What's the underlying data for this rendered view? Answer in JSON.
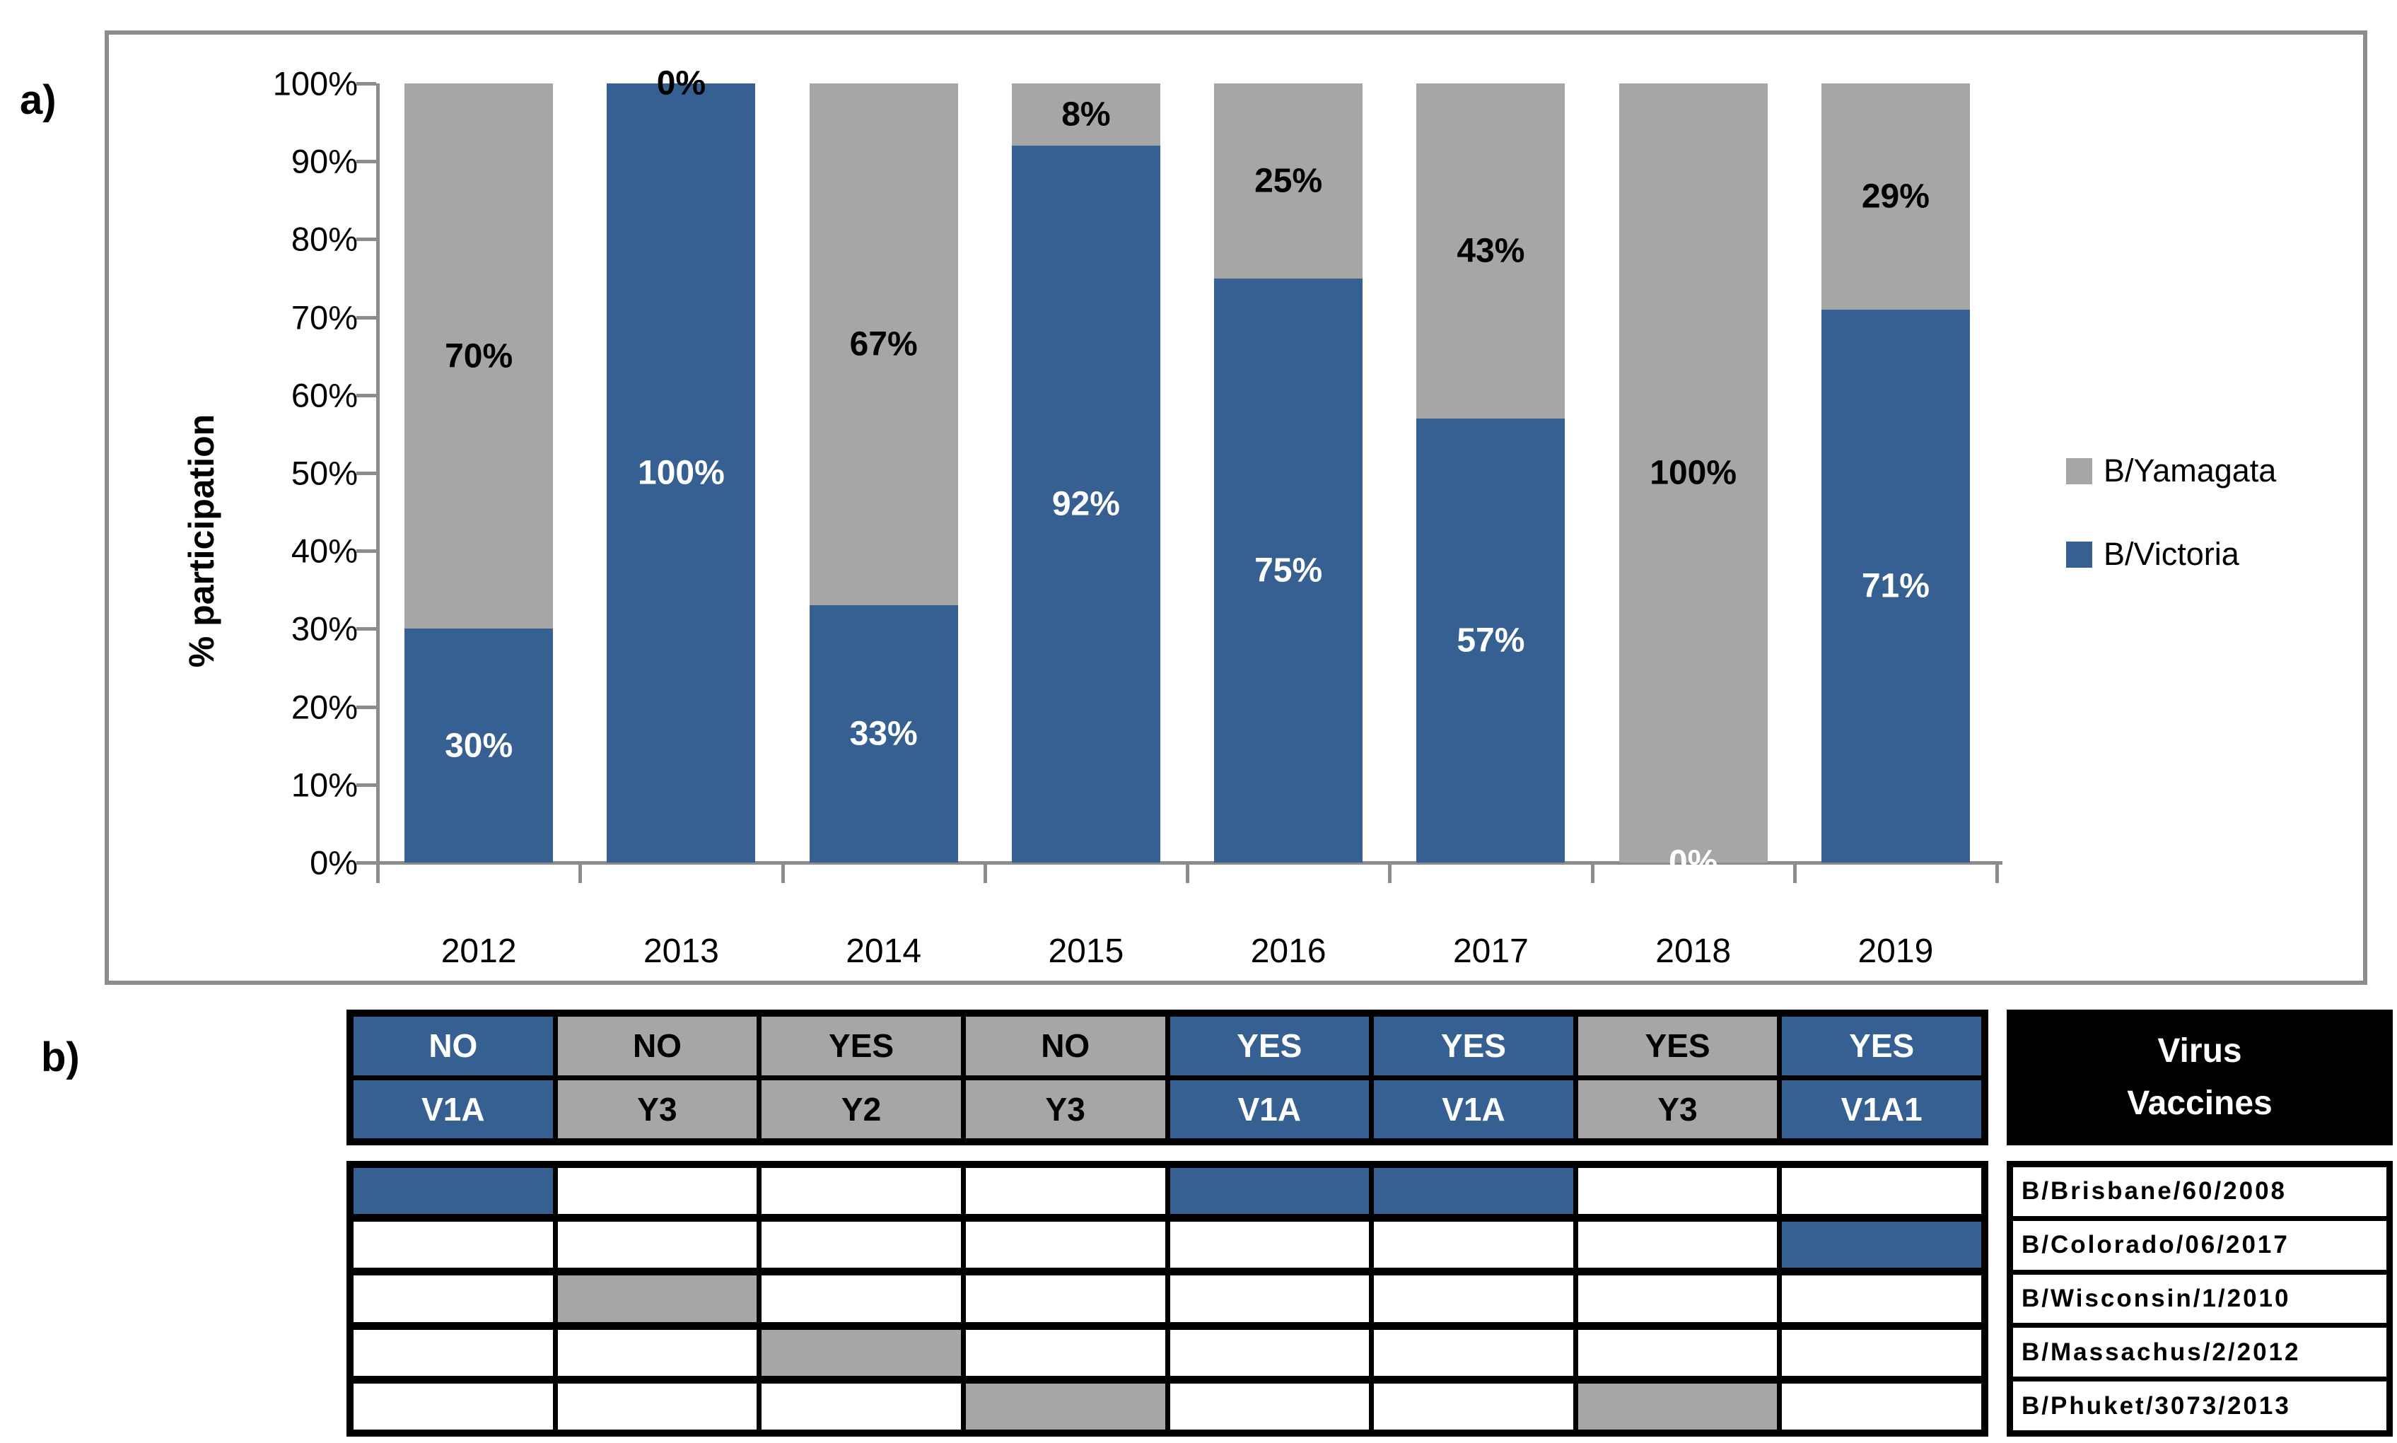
{
  "colors": {
    "victoria": "#366092",
    "yamagata": "#A6A6A6",
    "axis": "#8C8C8C",
    "table_border": "#000000",
    "vaccine_header_bg": "#000000",
    "vaccine_header_text": "#ffffff"
  },
  "panel_a": {
    "label": "a)",
    "y_axis": {
      "title": "% participation",
      "ticks": [
        {
          "label": "0%",
          "value": 0
        },
        {
          "label": "10%",
          "value": 10
        },
        {
          "label": "20%",
          "value": 20
        },
        {
          "label": "30%",
          "value": 30
        },
        {
          "label": "40%",
          "value": 40
        },
        {
          "label": "50%",
          "value": 50
        },
        {
          "label": "60%",
          "value": 60
        },
        {
          "label": "70%",
          "value": 70
        },
        {
          "label": "80%",
          "value": 80
        },
        {
          "label": "90%",
          "value": 90
        },
        {
          "label": "100%",
          "value": 100
        }
      ]
    },
    "legend": [
      {
        "label": "B/Yamagata",
        "series": "yamagata"
      },
      {
        "label": "B/Victoria",
        "series": "victoria"
      }
    ]
  },
  "chart_data": {
    "type": "bar",
    "stacked": true,
    "title": "",
    "xlabel": "",
    "ylabel": "% participation",
    "ylim": [
      0,
      100
    ],
    "grid": false,
    "legend_position": "right",
    "categories": [
      "2012",
      "2013",
      "2014",
      "2015",
      "2016",
      "2017",
      "2018",
      "2019"
    ],
    "series": [
      {
        "name": "B/Victoria",
        "color": "#366092",
        "values": [
          30,
          100,
          33,
          92,
          75,
          57,
          0,
          71
        ],
        "labels": [
          "30%",
          "100%",
          "33%",
          "92%",
          "75%",
          "57%",
          "0%",
          "71%"
        ]
      },
      {
        "name": "B/Yamagata",
        "color": "#A6A6A6",
        "values": [
          70,
          0,
          67,
          8,
          25,
          43,
          100,
          29
        ],
        "labels": [
          "70%",
          "0%",
          "67%",
          "8%",
          "25%",
          "43%",
          "100%",
          "29%"
        ]
      }
    ]
  },
  "panel_b": {
    "label": "b)",
    "season_header": {
      "columns": [
        {
          "match": "NO",
          "clade": "V1A",
          "lineage": "victoria"
        },
        {
          "match": "NO",
          "clade": "Y3",
          "lineage": "yamagata"
        },
        {
          "match": "YES",
          "clade": "Y2",
          "lineage": "yamagata"
        },
        {
          "match": "NO",
          "clade": "Y3",
          "lineage": "yamagata"
        },
        {
          "match": "YES",
          "clade": "V1A",
          "lineage": "victoria"
        },
        {
          "match": "YES",
          "clade": "V1A",
          "lineage": "victoria"
        },
        {
          "match": "YES",
          "clade": "Y3",
          "lineage": "yamagata"
        },
        {
          "match": "YES",
          "clade": "V1A1",
          "lineage": "victoria"
        }
      ]
    },
    "vaccine_table": {
      "title_lines": [
        "Virus",
        "Vaccines"
      ],
      "rows": [
        {
          "name": "B/Brisbane/60/2008",
          "cells": [
            "victoria",
            "",
            "",
            "",
            "victoria",
            "victoria",
            "",
            ""
          ]
        },
        {
          "name": "B/Colorado/06/2017",
          "cells": [
            "",
            "",
            "",
            "",
            "",
            "",
            "",
            "victoria"
          ]
        },
        {
          "name": "B/Wisconsin/1/2010",
          "cells": [
            "",
            "yamagata",
            "",
            "",
            "",
            "",
            "",
            ""
          ]
        },
        {
          "name": "B/Massachus/2/2012",
          "cells": [
            "",
            "",
            "yamagata",
            "",
            "",
            "",
            "",
            ""
          ]
        },
        {
          "name": "B/Phuket/3073/2013",
          "cells": [
            "",
            "",
            "",
            "yamagata",
            "",
            "",
            "yamagata",
            ""
          ]
        }
      ]
    }
  }
}
